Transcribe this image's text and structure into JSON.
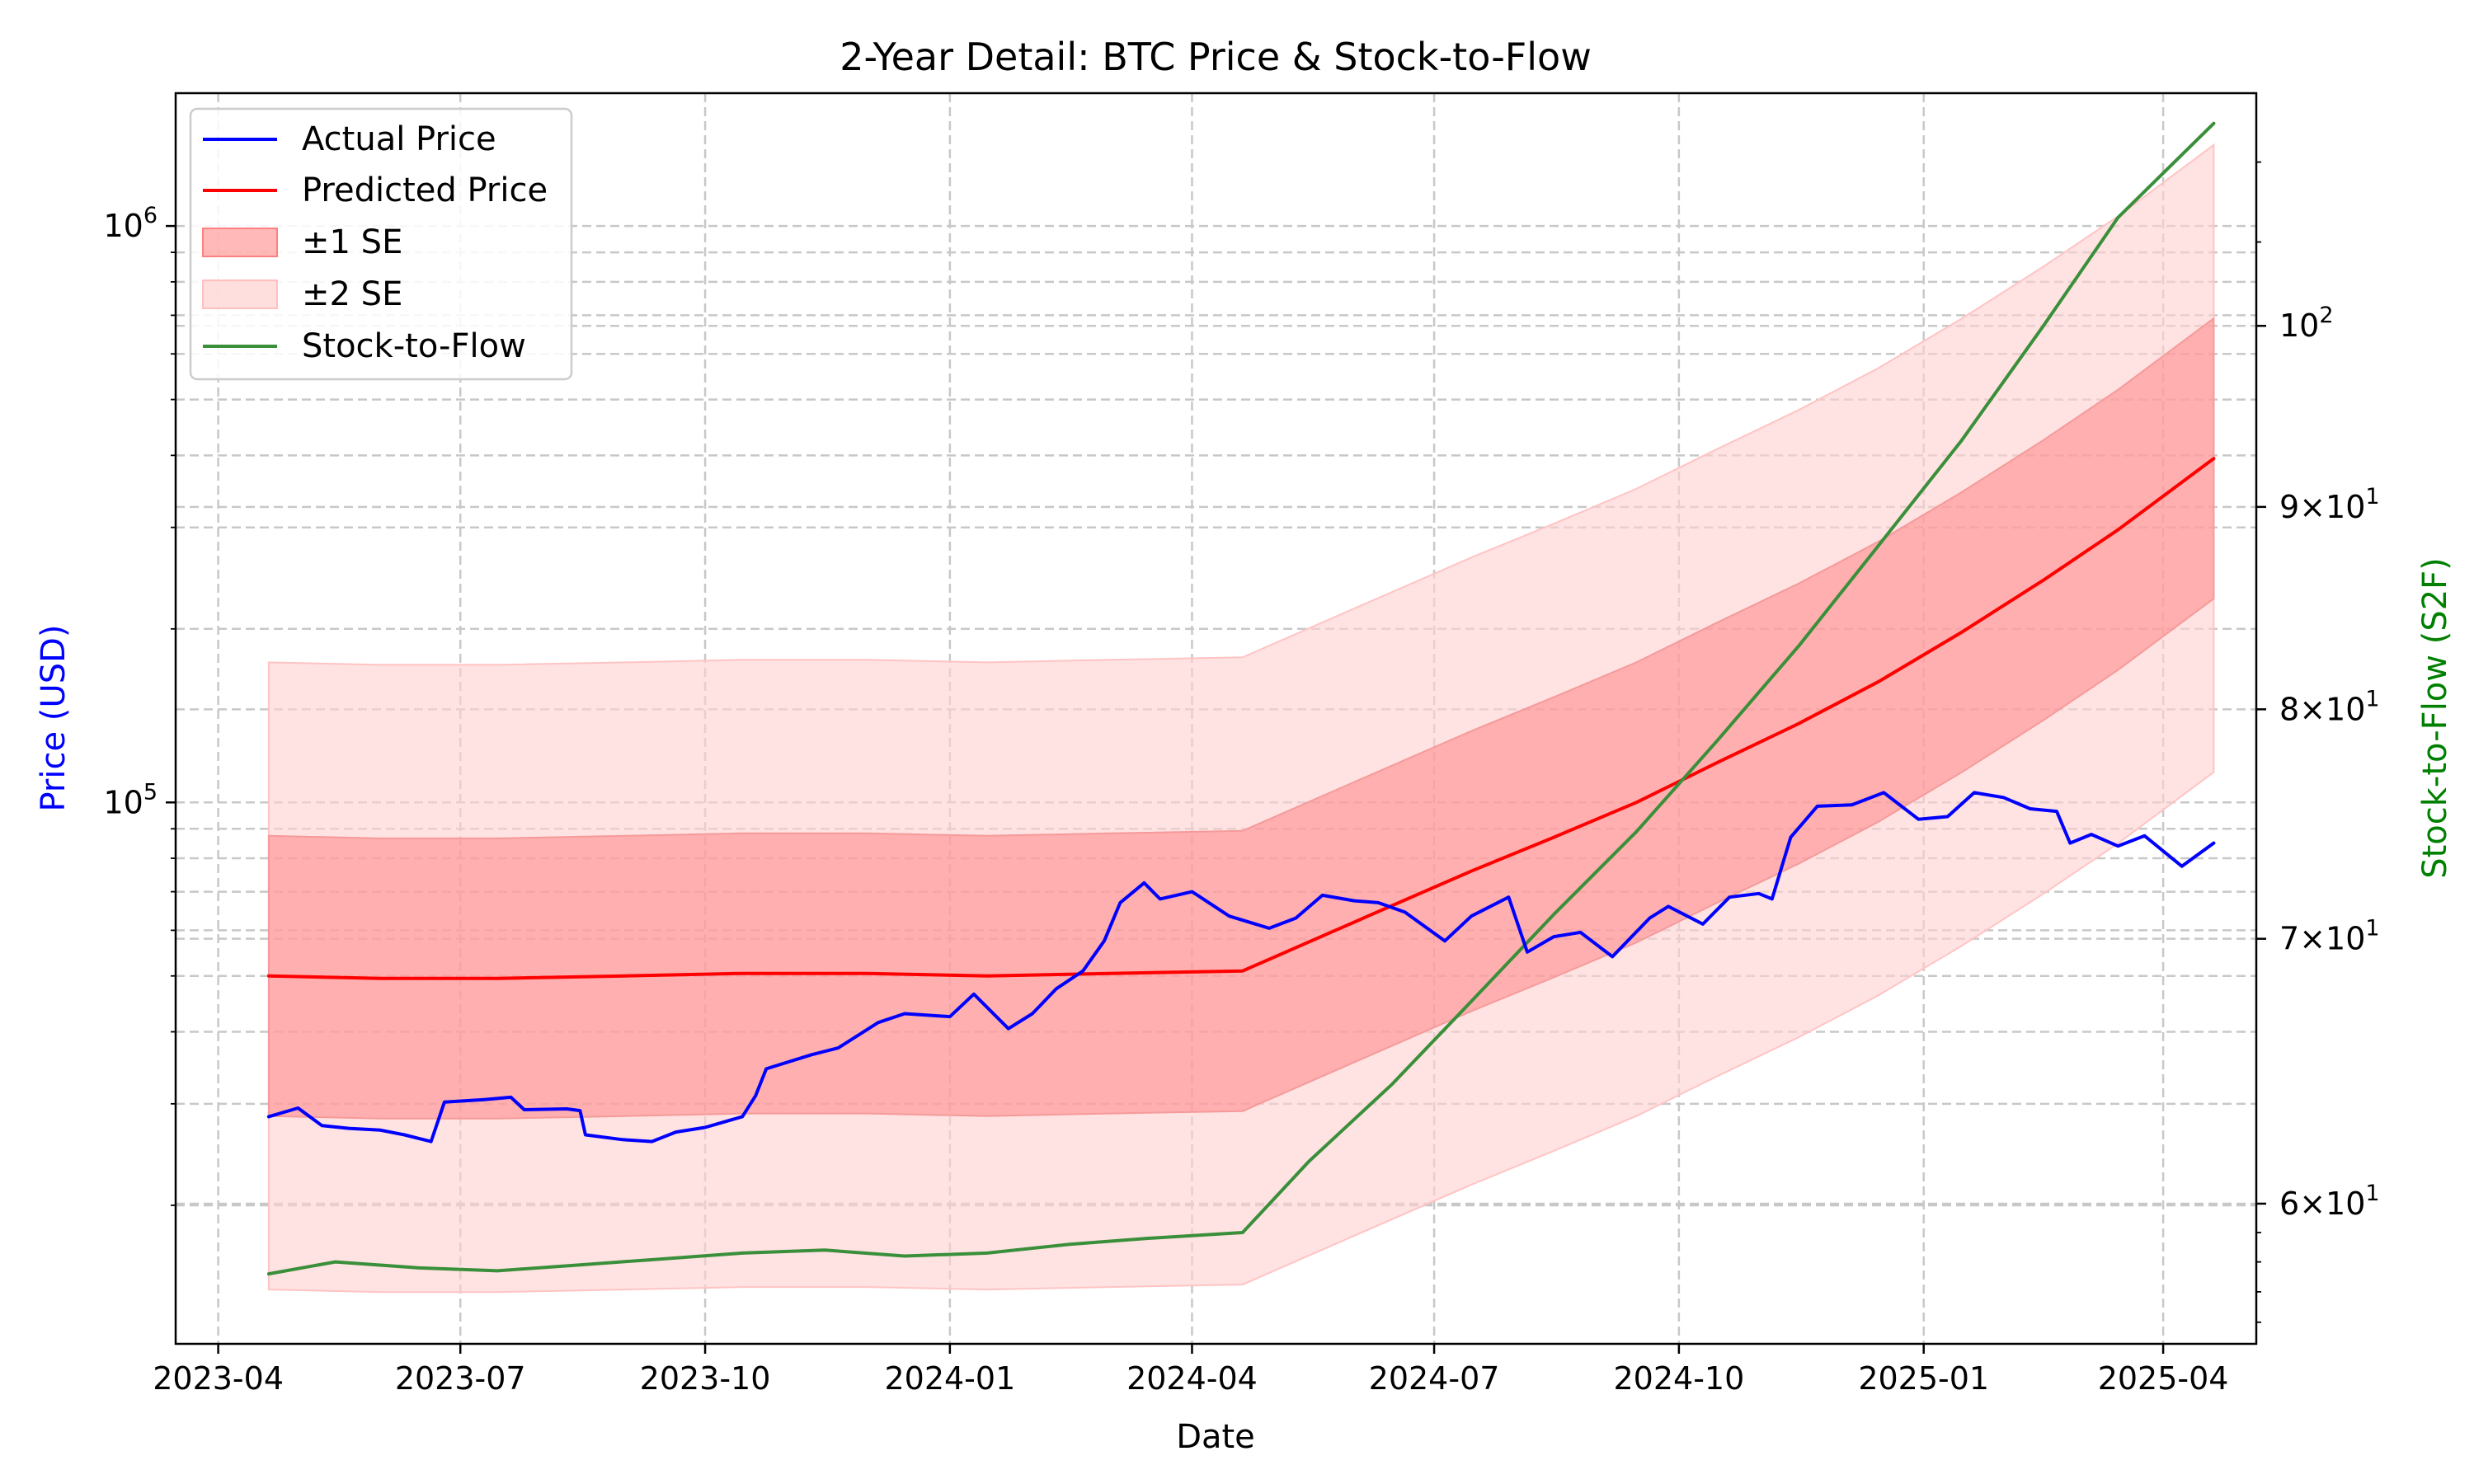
{
  "chart_data": {
    "type": "line",
    "title": "2-Year Detail: BTC Price & Stock-to-Flow",
    "xlabel": "Date",
    "ylabel": "Price (USD)",
    "y2label": "Stock-to-Flow (S2F)",
    "yscale": "log",
    "y2scale": "log",
    "xlim": [
      "2023-03-16",
      "2025-05-06"
    ],
    "ylim": [
      11500,
      1700000
    ],
    "y2lim": [
      55.3,
      114.5
    ],
    "x_ticks": [
      "2023-04",
      "2023-07",
      "2023-10",
      "2024-01",
      "2024-04",
      "2024-07",
      "2024-10",
      "2025-01",
      "2025-04"
    ],
    "y_ticks": [
      {
        "value": 100000,
        "base": "10",
        "exp": "5"
      },
      {
        "value": 1000000,
        "base": "10",
        "exp": "6"
      }
    ],
    "y2_ticks": [
      {
        "value": 60,
        "mant": "6",
        "base": "10",
        "exp": "1"
      },
      {
        "value": 70,
        "mant": "7",
        "base": "10",
        "exp": "1"
      },
      {
        "value": 80,
        "mant": "8",
        "base": "10",
        "exp": "1"
      },
      {
        "value": 90,
        "mant": "9",
        "base": "10",
        "exp": "1"
      },
      {
        "value": 100,
        "mant": "",
        "base": "10",
        "exp": "2"
      }
    ],
    "grid": true,
    "legend_position": "top-left",
    "colors": {
      "actual": "#0000ff",
      "predicted": "#ff0000",
      "se1": "#ff8080",
      "se2": "#ffd0d0",
      "s2f": "#3a8f3a",
      "ylabel": "#0000ff",
      "y2label": "#008000"
    },
    "series": [
      {
        "name": "Actual Price",
        "axis": "left",
        "x": [
          "2023-04-20",
          "2023-05-01",
          "2023-05-10",
          "2023-05-20",
          "2023-06-01",
          "2023-06-10",
          "2023-06-20",
          "2023-06-25",
          "2023-07-10",
          "2023-07-20",
          "2023-07-25",
          "2023-08-10",
          "2023-08-15",
          "2023-08-17",
          "2023-08-31",
          "2023-09-11",
          "2023-09-20",
          "2023-10-01",
          "2023-10-15",
          "2023-10-20",
          "2023-10-24",
          "2023-11-10",
          "2023-11-20",
          "2023-12-05",
          "2023-12-15",
          "2024-01-01",
          "2024-01-10",
          "2024-01-23",
          "2024-02-01",
          "2024-02-10",
          "2024-02-20",
          "2024-02-28",
          "2024-03-05",
          "2024-03-14",
          "2024-03-20",
          "2024-04-01",
          "2024-04-15",
          "2024-04-30",
          "2024-05-10",
          "2024-05-20",
          "2024-06-01",
          "2024-06-10",
          "2024-06-20",
          "2024-07-05",
          "2024-07-15",
          "2024-07-29",
          "2024-08-05",
          "2024-08-15",
          "2024-08-25",
          "2024-09-06",
          "2024-09-20",
          "2024-09-27",
          "2024-10-10",
          "2024-10-20",
          "2024-10-31",
          "2024-11-05",
          "2024-11-12",
          "2024-11-22",
          "2024-12-05",
          "2024-12-17",
          "2024-12-30",
          "2025-01-10",
          "2025-01-20",
          "2025-01-31",
          "2025-02-10",
          "2025-02-20",
          "2025-02-25",
          "2025-03-05",
          "2025-03-15",
          "2025-03-25",
          "2025-04-08",
          "2025-04-20"
        ],
        "values": [
          28500,
          29500,
          27500,
          27200,
          27000,
          26500,
          25800,
          30200,
          30500,
          30800,
          29300,
          29400,
          29200,
          26500,
          26000,
          25800,
          26800,
          27300,
          28500,
          31000,
          34500,
          36500,
          37500,
          41500,
          43000,
          42500,
          46500,
          40500,
          43000,
          47500,
          51000,
          57500,
          67000,
          72500,
          68000,
          70000,
          63500,
          60500,
          63000,
          69000,
          67500,
          67000,
          64500,
          57500,
          63500,
          68500,
          55000,
          58500,
          59500,
          54000,
          63000,
          66000,
          61500,
          68500,
          69500,
          68000,
          87000,
          98500,
          99000,
          104000,
          93500,
          94500,
          104000,
          102000,
          97500,
          96500,
          85000,
          88000,
          84000,
          87500,
          77500,
          85000
        ]
      },
      {
        "name": "Predicted Price",
        "axis": "left",
        "x": [
          "2023-04-20",
          "2023-06-01",
          "2023-07-15",
          "2023-09-01",
          "2023-10-15",
          "2023-12-01",
          "2024-01-15",
          "2024-03-01",
          "2024-04-20",
          "2024-06-01",
          "2024-07-15",
          "2024-08-15",
          "2024-09-15",
          "2024-10-15",
          "2024-11-15",
          "2024-12-15",
          "2025-01-15",
          "2025-02-15",
          "2025-03-15",
          "2025-04-20"
        ],
        "values": [
          50000,
          49500,
          49500,
          50000,
          50500,
          50500,
          50000,
          50500,
          51000,
          62000,
          76000,
          87000,
          100000,
          117000,
          137000,
          162000,
          197000,
          243000,
          297000,
          395000
        ]
      },
      {
        "name": "Stock-to-Flow",
        "axis": "right",
        "x": [
          "2023-04-20",
          "2023-05-15",
          "2023-06-15",
          "2023-07-15",
          "2023-08-15",
          "2023-09-15",
          "2023-10-15",
          "2023-11-15",
          "2023-12-15",
          "2024-01-15",
          "2024-02-15",
          "2024-03-15",
          "2024-04-20",
          "2024-05-15",
          "2024-06-15",
          "2024-07-15",
          "2024-08-15",
          "2024-09-15",
          "2024-10-15",
          "2024-11-15",
          "2024-12-15",
          "2025-01-15",
          "2025-02-15",
          "2025-03-15",
          "2025-04-20"
        ],
        "values": [
          57.6,
          58.0,
          57.8,
          57.7,
          57.9,
          58.1,
          58.3,
          58.4,
          58.2,
          58.3,
          58.6,
          58.8,
          59.0,
          61.5,
          64.3,
          67.5,
          71.0,
          74.5,
          78.5,
          83.0,
          88.0,
          93.5,
          100.0,
          106.5,
          112.5
        ]
      }
    ],
    "bands": [
      {
        "name": "±1 SE",
        "center": "Predicted Price",
        "factor": 1.75
      },
      {
        "name": "±2 SE",
        "center": "Predicted Price",
        "factor": 3.5
      }
    ]
  },
  "legend": {
    "actual": "Actual Price",
    "predicted": "Predicted Price",
    "se1": "±1 SE",
    "se2": "±2 SE",
    "s2f": "Stock-to-Flow"
  }
}
